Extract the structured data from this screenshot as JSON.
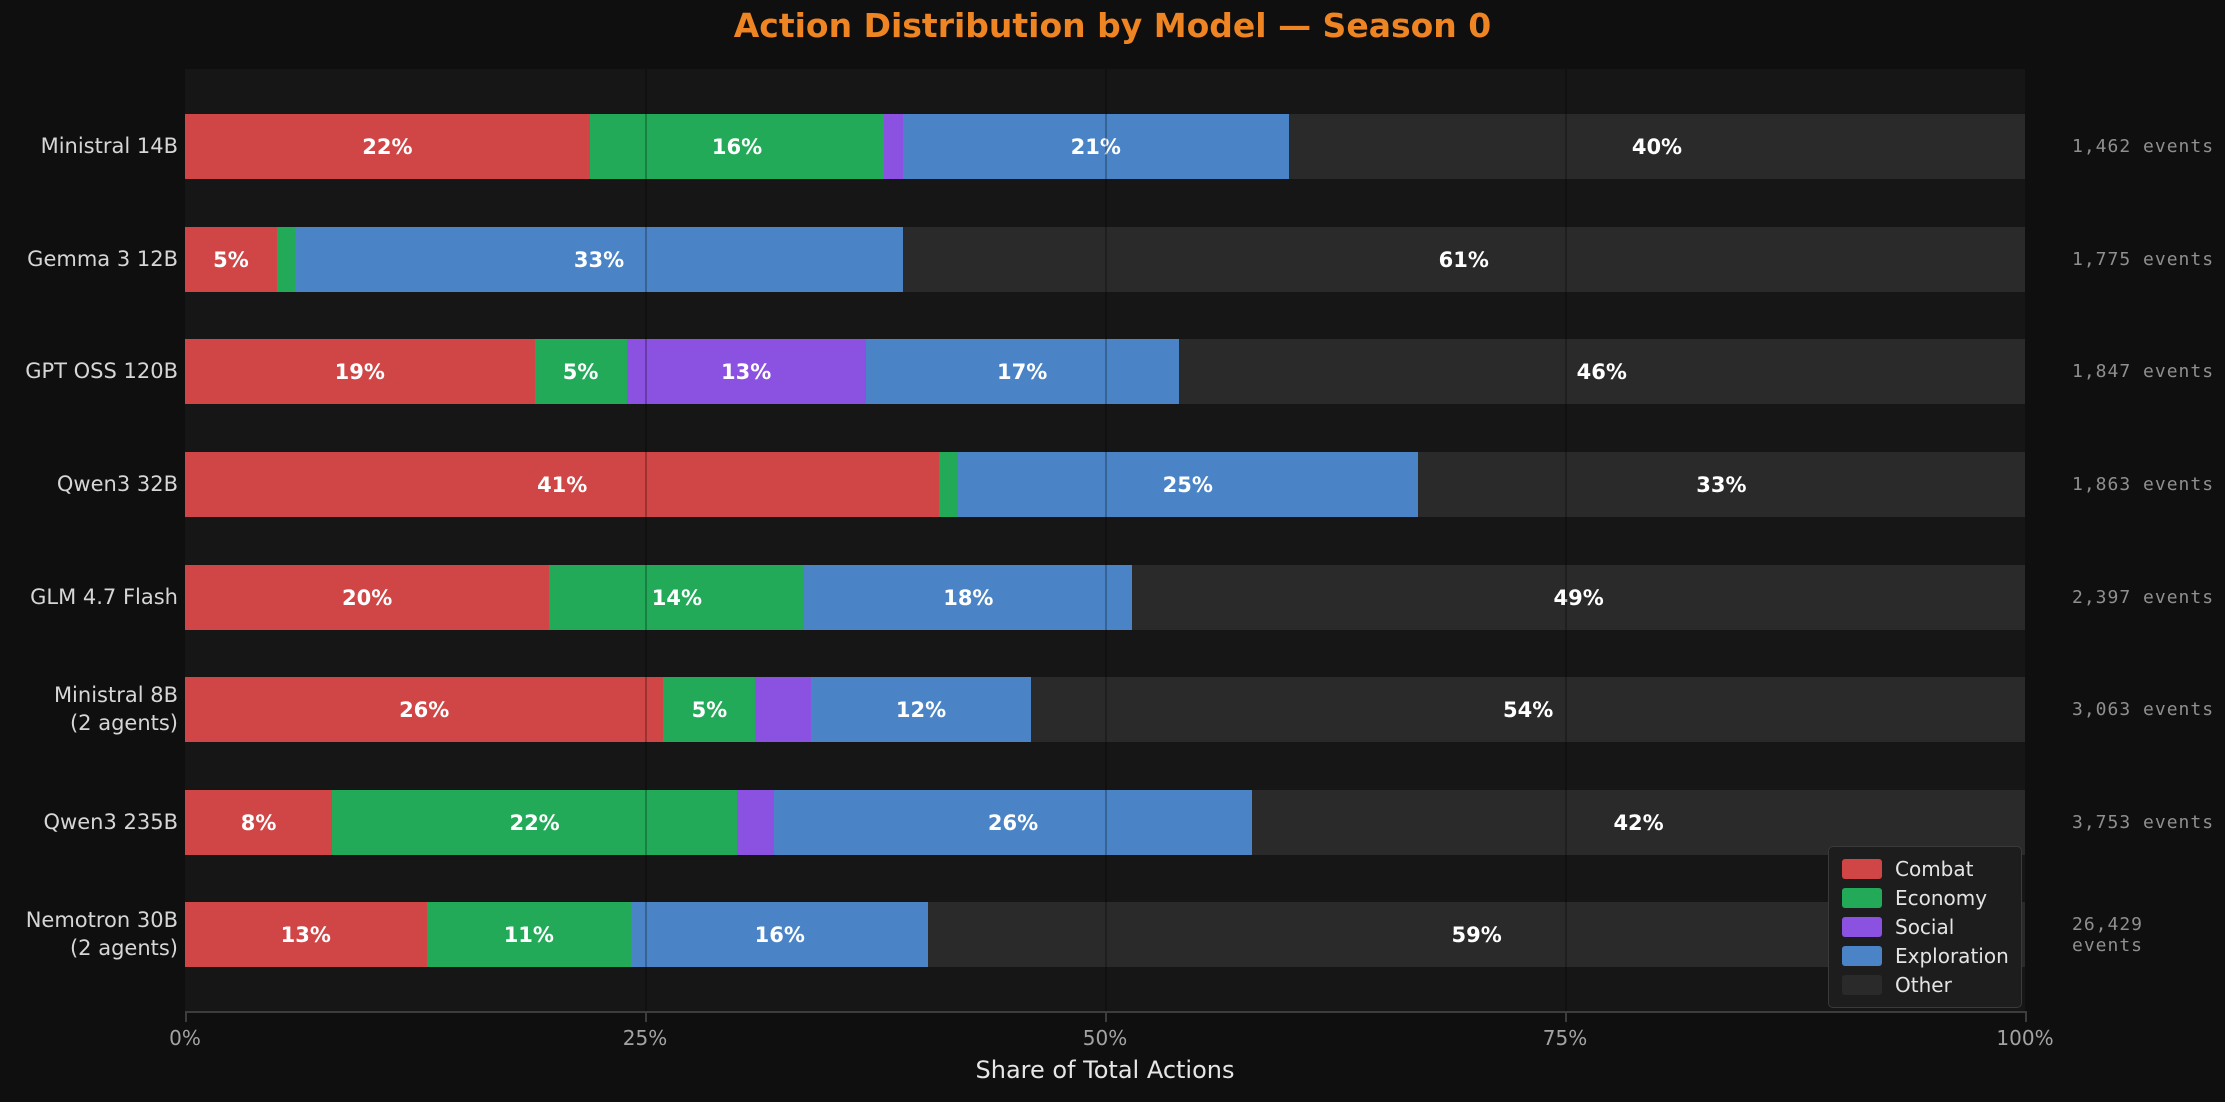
{
  "colors": {
    "page_bg": "#0f0f0f",
    "plot_bg": "#161616",
    "title": "#ee8422",
    "bar_label": "#ffffff",
    "y_label": "#d6d6d6",
    "event_label": "#8f8f8f",
    "tick_label": "#a3a3a3",
    "x_axis_label": "#e6e6e6",
    "spine": "#3d3d3d",
    "legend_bg": "#1d1d1d",
    "legend_border": "#3a3a3a",
    "combat": "#d04545",
    "economy": "#22aa58",
    "social": "#8b51e0",
    "exploration": "#4a84c6",
    "other": "#2a2a2a"
  },
  "chart_data": {
    "type": "bar",
    "orientation": "horizontal",
    "stacked": true,
    "title": "Action Distribution by Model — Season 0",
    "xlabel": "Share of Total Actions",
    "xlim": [
      0,
      100
    ],
    "x_ticks": [
      "0%",
      "25%",
      "50%",
      "75%",
      "100%"
    ],
    "x_tick_positions": [
      0,
      25,
      50,
      75,
      100
    ],
    "grid": "faint vertical lines at 25/50/75",
    "legend_position": "lower right",
    "label_min_pct": 5,
    "categories": [
      "Ministral 14B",
      "Gemma 3 12B",
      "GPT OSS 120B",
      "Qwen3 32B",
      "GLM 4.7 Flash",
      "Ministral 8B\n(2 agents)",
      "Qwen3 235B",
      "Nemotron 30B\n(2 agents)"
    ],
    "event_counts": [
      "1,462 events",
      "1,775 events",
      "1,847 events",
      "1,863 events",
      "2,397 events",
      "3,063 events",
      "3,753 events",
      "26,429 events"
    ],
    "series": [
      {
        "name": "Combat",
        "color_key": "combat",
        "values": [
          22,
          5,
          19,
          41,
          20,
          26,
          8,
          13
        ]
      },
      {
        "name": "Economy",
        "color_key": "economy",
        "values": [
          16,
          1,
          5,
          1,
          14,
          5,
          22,
          11
        ]
      },
      {
        "name": "Social",
        "color_key": "social",
        "values": [
          1,
          0,
          13,
          0,
          0,
          3,
          2,
          0
        ]
      },
      {
        "name": "Exploration",
        "color_key": "exploration",
        "values": [
          21,
          33,
          17,
          25,
          18,
          12,
          26,
          16
        ]
      },
      {
        "name": "Other",
        "color_key": "other",
        "values": [
          40,
          61,
          46,
          33,
          49,
          54,
          42,
          59
        ]
      }
    ]
  }
}
